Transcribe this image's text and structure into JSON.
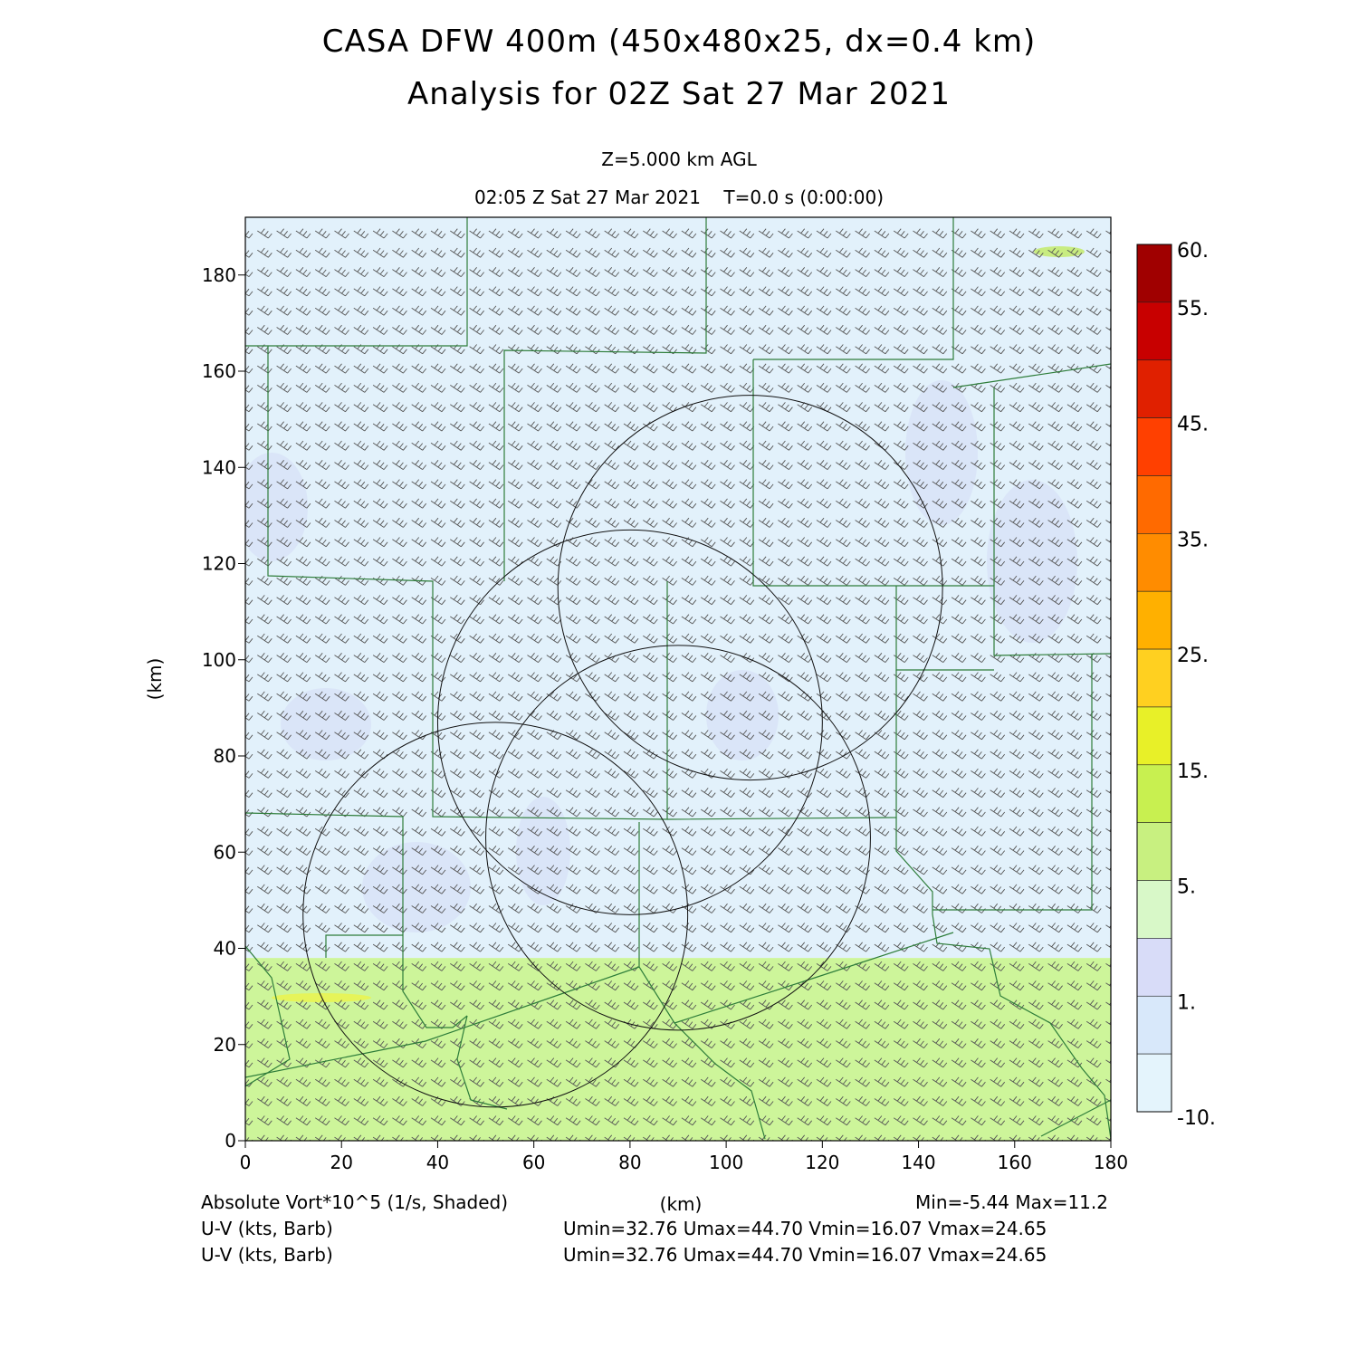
{
  "titles": {
    "line1": "CASA DFW 400m (450x480x25, dx=0.4 km)",
    "line2": "Analysis for 02Z Sat 27 Mar 2021",
    "level": "Z=5.000 km AGL",
    "time": "02:05 Z Sat 27 Mar 2021    T=0.0 s (0:00:00)"
  },
  "axes": {
    "xlabel": "(km)",
    "ylabel": "(km)",
    "xlim": [
      0,
      180
    ],
    "ylim": [
      0,
      192
    ],
    "xticks": [
      "0",
      "20",
      "40",
      "60",
      "80",
      "100",
      "120",
      "140",
      "160",
      "180"
    ],
    "yticks": [
      "0",
      "20",
      "40",
      "60",
      "80",
      "100",
      "120",
      "140",
      "160",
      "180"
    ]
  },
  "colorbar": {
    "labels": [
      "60.",
      "55.",
      "45.",
      "35.",
      "25.",
      "15.",
      "5.",
      "1.",
      "-10."
    ],
    "colors": [
      "#a00000",
      "#c80000",
      "#e02000",
      "#ff4000",
      "#ff6a00",
      "#ff8c00",
      "#ffb000",
      "#ffd020",
      "#e8f028",
      "#c8f050",
      "#c8f080",
      "#d8f8c8",
      "#d8dcf8",
      "#d8e8fa",
      "#e4f4fc"
    ]
  },
  "footer": {
    "field1": "Absolute Vort*10^5 (1/s, Shaded)",
    "unit": "(km)",
    "minmax": "Min=-5.44 Max=11.2",
    "field2": "U-V (kts, Barb)",
    "stats2": "Umin=32.76 Umax=44.70 Vmin=16.07 Vmax=24.65",
    "field3": "U-V (kts, Barb)",
    "stats3": "Umin=32.76 Umax=44.70 Vmin=16.07 Vmax=24.65"
  },
  "map_data": {
    "field_band_top_km": 38,
    "radar_rings_km": [
      {
        "cx": 105,
        "cy": 115,
        "r": 40
      },
      {
        "cx": 80,
        "cy": 87,
        "r": 40
      },
      {
        "cx": 90,
        "cy": 63,
        "r": 40
      },
      {
        "cx": 52,
        "cy": 47,
        "r": 40
      }
    ]
  }
}
